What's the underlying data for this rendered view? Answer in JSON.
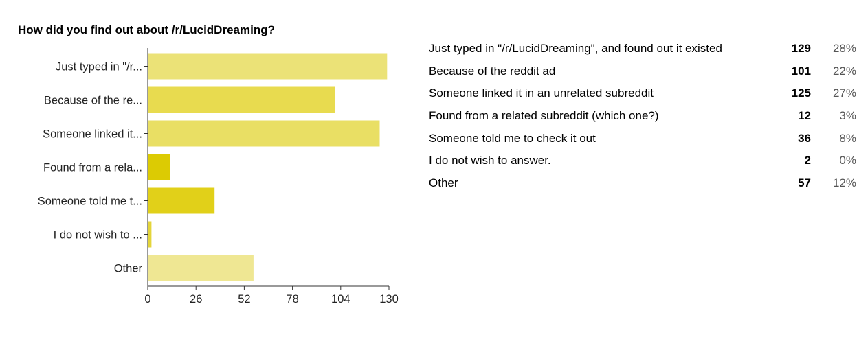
{
  "chart_data": {
    "type": "bar",
    "orientation": "horizontal",
    "title": "How did you find out about /r/LucidDreaming?",
    "categories": [
      "Just typed in \"/r/LucidDreaming\", and found out it existed",
      "Because of the reddit ad",
      "Someone linked it in an unrelated subreddit",
      "Found from a related subreddit (which one?)",
      "Someone told me to check it out",
      "I do not wish to answer.",
      "Other"
    ],
    "tick_labels": [
      "Just typed in \"/r...",
      "Because of the re...",
      "Someone linked it...",
      "Found from a rela...",
      "Someone told me t...",
      "I do not wish to ...",
      "Other"
    ],
    "values": [
      129,
      101,
      125,
      12,
      36,
      2,
      57
    ],
    "percentages": [
      "28%",
      "22%",
      "27%",
      "3%",
      "8%",
      "0%",
      "12%"
    ],
    "xlim": [
      0,
      130
    ],
    "xticks": [
      0,
      26,
      52,
      78,
      104,
      130
    ],
    "xlabel": "",
    "ylabel": "",
    "grid": false,
    "legend": "none",
    "bar_colors": [
      "#ebe277",
      "#e8db4f",
      "#e9df64",
      "#dccb03",
      "#e1d019",
      "#e4d53a",
      "#efe793"
    ]
  }
}
